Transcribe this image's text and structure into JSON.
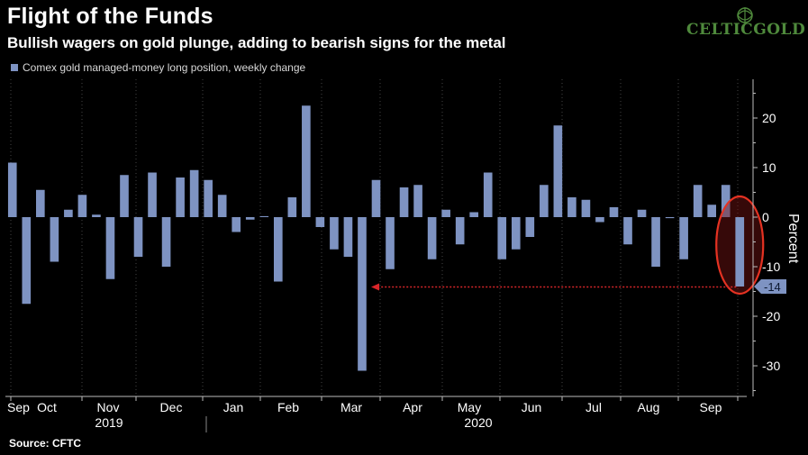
{
  "header": {
    "title": "Flight of the Funds",
    "subtitle": "Bullish wagers on gold plunge, adding to bearish signs for the metal"
  },
  "legend": {
    "label": "Comex gold managed-money long position, weekly change"
  },
  "source": "Source: CFTC",
  "logo": {
    "text": "CELTICGOLD"
  },
  "colors": {
    "bar": "#7e93c2",
    "background": "#000000",
    "highlight_circle": "#e53222",
    "arrow": "#d9262a",
    "grid": "#444444",
    "last_label_bg": "#7e93c2"
  },
  "chart_data": {
    "type": "bar",
    "title": "Flight of the Funds",
    "subtitle": "Bullish wagers on gold plunge, adding to bearish signs for the metal",
    "ylabel": "Percent",
    "y_axis_side": "right",
    "ylim": [
      -36,
      27
    ],
    "yticks": [
      20,
      10,
      0,
      -10,
      -20,
      -30
    ],
    "grid": "dotted vertical",
    "series": [
      {
        "name": "Comex gold managed-money long position, weekly change",
        "values": [
          11,
          -17.5,
          5.5,
          -9,
          1.5,
          4.5,
          0.5,
          -12.5,
          8.5,
          -8,
          9,
          -10,
          8,
          9.5,
          7.5,
          4.5,
          -3,
          -0.5,
          0.2,
          -13,
          4,
          22.5,
          -2,
          -6.5,
          -8,
          -31,
          7.5,
          -10.5,
          6,
          6.5,
          -8.5,
          1.5,
          -5.5,
          1,
          9,
          -8.5,
          -6.5,
          -4,
          6.5,
          18.5,
          4,
          3.5,
          -1,
          2,
          -5.5,
          1.5,
          -10,
          -0.2,
          -8.5,
          6.5,
          2.5,
          6.5,
          -14
        ]
      }
    ],
    "x_month_labels": [
      "Sep",
      "Oct",
      "Nov",
      "Dec",
      "Jan",
      "Feb",
      "Mar",
      "Apr",
      "May",
      "Jun",
      "Jul",
      "Aug",
      "Sep"
    ],
    "x_year_labels": [
      "2019",
      "2020"
    ],
    "annotations": {
      "last_value_label": "-14",
      "highlight": "latest week circled in red",
      "arrow": "dotted red arrow from latest bar pointing back to the March low"
    }
  }
}
